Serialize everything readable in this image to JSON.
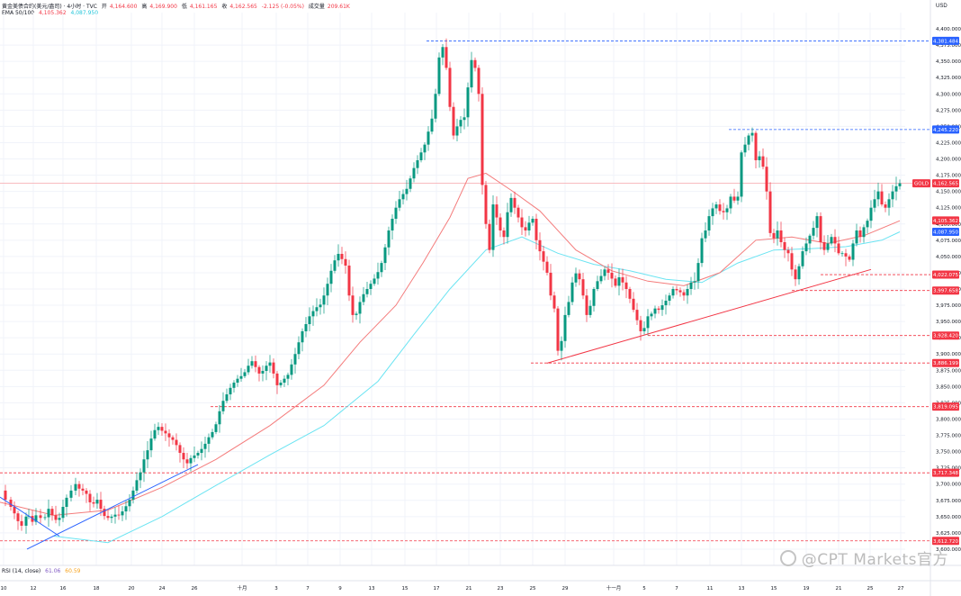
{
  "header": {
    "symbol_title": "黄金美债合约(美元/盎司) · 4小时 · TVC",
    "open_label": "开",
    "open": "4,164.600",
    "high_label": "高",
    "high": "4,169.900",
    "low_label": "低",
    "low": "4,161.165",
    "close_label": "收",
    "close": "4,162.565",
    "change": "-2.125 (-0.05%)",
    "volume_label": "成交量",
    "volume": "209.61K",
    "ema_label": "EMA 50/100",
    "ema50": "4,105.362",
    "ema100": "4,087.950"
  },
  "rsi": {
    "label": "RSI (14, close)",
    "v1": "61.06",
    "v2": "60.59"
  },
  "currency": "USD",
  "watermark": "@CPT Markets官方",
  "colors": {
    "up": "#089981",
    "down": "#f23645",
    "ema50": "#f47c7c",
    "ema100": "#6be4f2",
    "trendline_blue": "#2962ff",
    "trendline_red": "#f23645",
    "level_red": "#f23645",
    "level_blue": "#2962ff"
  },
  "chart_data": {
    "type": "candlestick",
    "title": "黄金美债合约(美元/盎司) · 4小时 · TVC",
    "ylim": [
      3575,
      4425
    ],
    "y_ticks": [
      "3,600.000",
      "3,625.000",
      "3,650.000",
      "3,675.000",
      "3,700.000",
      "3,725.000",
      "3,750.000",
      "3,775.000",
      "3,800.000",
      "3,825.000",
      "3,850.000",
      "3,875.000",
      "3,900.000",
      "3,925.000",
      "3,950.000",
      "3,975.000",
      "4,000.000",
      "4,025.000",
      "4,050.000",
      "4,075.000",
      "4,100.000",
      "4,125.000",
      "4,150.000",
      "4,175.000",
      "4,200.000",
      "4,225.000",
      "4,250.000",
      "4,275.000",
      "4,300.000",
      "4,325.000",
      "4,350.000",
      "4,375.000",
      "4,400.000"
    ],
    "x_labels": [
      "10",
      "12",
      "16",
      "18",
      "20",
      "24",
      "26",
      "十月",
      "3",
      "7",
      "9",
      "13",
      "15",
      "17",
      "21",
      "23",
      "25",
      "29",
      "十一月",
      "5",
      "7",
      "11",
      "13",
      "15",
      "19",
      "21",
      "25",
      "27"
    ],
    "close_path": [
      [
        0,
        3690
      ],
      [
        6,
        3676
      ],
      [
        12,
        3665
      ],
      [
        16,
        3655
      ],
      [
        20,
        3643
      ],
      [
        24,
        3636
      ],
      [
        29,
        3650
      ],
      [
        32,
        3651
      ],
      [
        36,
        3642
      ],
      [
        40,
        3652
      ],
      [
        45,
        3648
      ],
      [
        50,
        3649
      ],
      [
        54,
        3662
      ],
      [
        58,
        3652
      ],
      [
        62,
        3645
      ],
      [
        66,
        3648
      ],
      [
        70,
        3665
      ],
      [
        74,
        3679
      ],
      [
        79,
        3690
      ],
      [
        84,
        3700
      ],
      [
        88,
        3693
      ],
      [
        92,
        3690
      ],
      [
        96,
        3685
      ],
      [
        100,
        3672
      ],
      [
        104,
        3670
      ],
      [
        108,
        3676
      ],
      [
        112,
        3662
      ],
      [
        116,
        3651
      ],
      [
        120,
        3648
      ],
      [
        124,
        3650
      ],
      [
        128,
        3653
      ],
      [
        132,
        3652
      ],
      [
        136,
        3658
      ],
      [
        140,
        3666
      ],
      [
        144,
        3676
      ],
      [
        148,
        3690
      ],
      [
        152,
        3706
      ],
      [
        156,
        3718
      ],
      [
        160,
        3738
      ],
      [
        164,
        3752
      ],
      [
        168,
        3770
      ],
      [
        172,
        3783
      ],
      [
        176,
        3788
      ],
      [
        180,
        3782
      ],
      [
        184,
        3778
      ],
      [
        188,
        3772
      ],
      [
        192,
        3768
      ],
      [
        196,
        3760
      ],
      [
        200,
        3748
      ],
      [
        204,
        3738
      ],
      [
        208,
        3732
      ],
      [
        212,
        3740
      ],
      [
        216,
        3744
      ],
      [
        220,
        3748
      ],
      [
        224,
        3754
      ],
      [
        228,
        3762
      ],
      [
        232,
        3772
      ],
      [
        236,
        3780
      ],
      [
        240,
        3792
      ],
      [
        244,
        3812
      ],
      [
        248,
        3828
      ],
      [
        252,
        3838
      ],
      [
        256,
        3848
      ],
      [
        260,
        3856
      ],
      [
        264,
        3862
      ],
      [
        268,
        3866
      ],
      [
        272,
        3872
      ],
      [
        276,
        3882
      ],
      [
        280,
        3889
      ],
      [
        284,
        3880
      ],
      [
        288,
        3870
      ],
      [
        292,
        3874
      ],
      [
        296,
        3882
      ],
      [
        300,
        3887
      ],
      [
        304,
        3870
      ],
      [
        308,
        3852
      ],
      [
        312,
        3856
      ],
      [
        316,
        3862
      ],
      [
        320,
        3868
      ],
      [
        324,
        3884
      ],
      [
        328,
        3900
      ],
      [
        332,
        3918
      ],
      [
        336,
        3935
      ],
      [
        340,
        3946
      ],
      [
        344,
        3958
      ],
      [
        348,
        3966
      ],
      [
        352,
        3972
      ],
      [
        356,
        3976
      ],
      [
        360,
        3990
      ],
      [
        364,
        4008
      ],
      [
        368,
        4028
      ],
      [
        372,
        4044
      ],
      [
        376,
        4054
      ],
      [
        380,
        4046
      ],
      [
        384,
        4036
      ],
      [
        388,
        3990
      ],
      [
        392,
        3960
      ],
      [
        396,
        3962
      ],
      [
        400,
        3980
      ],
      [
        404,
        3992
      ],
      [
        408,
        4000
      ],
      [
        412,
        4008
      ],
      [
        416,
        4016
      ],
      [
        420,
        4026
      ],
      [
        424,
        4040
      ],
      [
        428,
        4064
      ],
      [
        432,
        4090
      ],
      [
        436,
        4108
      ],
      [
        440,
        4125
      ],
      [
        444,
        4138
      ],
      [
        448,
        4146
      ],
      [
        452,
        4154
      ],
      [
        456,
        4170
      ],
      [
        460,
        4186
      ],
      [
        464,
        4198
      ],
      [
        468,
        4210
      ],
      [
        472,
        4222
      ],
      [
        476,
        4242
      ],
      [
        480,
        4262
      ],
      [
        484,
        4300
      ],
      [
        488,
        4356
      ],
      [
        492,
        4372
      ],
      [
        496,
        4340
      ],
      [
        500,
        4280
      ],
      [
        504,
        4236
      ],
      [
        508,
        4250
      ],
      [
        512,
        4260
      ],
      [
        516,
        4264
      ],
      [
        520,
        4310
      ],
      [
        524,
        4352
      ],
      [
        528,
        4340
      ],
      [
        532,
        4300
      ],
      [
        536,
        4160
      ],
      [
        540,
        4100
      ],
      [
        544,
        4060
      ],
      [
        548,
        4130
      ],
      [
        552,
        4110
      ],
      [
        556,
        4090
      ],
      [
        560,
        4080
      ],
      [
        564,
        4118
      ],
      [
        568,
        4140
      ],
      [
        572,
        4125
      ],
      [
        576,
        4110
      ],
      [
        580,
        4095
      ],
      [
        584,
        4090
      ],
      [
        588,
        4102
      ],
      [
        592,
        4108
      ],
      [
        596,
        4075
      ],
      [
        600,
        4058
      ],
      [
        604,
        4042
      ],
      [
        608,
        4025
      ],
      [
        612,
        3990
      ],
      [
        616,
        3970
      ],
      [
        620,
        3905
      ],
      [
        624,
        3920
      ],
      [
        628,
        3960
      ],
      [
        632,
        3980
      ],
      [
        636,
        4010
      ],
      [
        640,
        4024
      ],
      [
        644,
        4015
      ],
      [
        648,
        3990
      ],
      [
        652,
        3960
      ],
      [
        656,
        3974
      ],
      [
        660,
        4000
      ],
      [
        664,
        4012
      ],
      [
        668,
        4020
      ],
      [
        672,
        4030
      ],
      [
        676,
        4025
      ],
      [
        680,
        4016
      ],
      [
        684,
        4005
      ],
      [
        688,
        4018
      ],
      [
        692,
        4010
      ],
      [
        696,
        4000
      ],
      [
        700,
        3985
      ],
      [
        704,
        3968
      ],
      [
        708,
        3952
      ],
      [
        712,
        3935
      ],
      [
        716,
        3940
      ],
      [
        720,
        3958
      ],
      [
        724,
        3962
      ],
      [
        728,
        3970
      ],
      [
        732,
        3968
      ],
      [
        736,
        3975
      ],
      [
        740,
        3982
      ],
      [
        744,
        3990
      ],
      [
        748,
        4000
      ],
      [
        752,
        3998
      ],
      [
        756,
        3995
      ],
      [
        760,
        3990
      ],
      [
        764,
        4000
      ],
      [
        768,
        4010
      ],
      [
        772,
        4012
      ],
      [
        776,
        4040
      ],
      [
        780,
        4078
      ],
      [
        784,
        4090
      ],
      [
        788,
        4112
      ],
      [
        792,
        4124
      ],
      [
        796,
        4130
      ],
      [
        800,
        4120
      ],
      [
        804,
        4118
      ],
      [
        808,
        4124
      ],
      [
        812,
        4142
      ],
      [
        816,
        4136
      ],
      [
        820,
        4142
      ],
      [
        824,
        4210
      ],
      [
        828,
        4222
      ],
      [
        832,
        4236
      ],
      [
        836,
        4240
      ],
      [
        840,
        4198
      ],
      [
        844,
        4204
      ],
      [
        848,
        4188
      ],
      [
        852,
        4150
      ],
      [
        856,
        4086
      ],
      [
        860,
        4078
      ],
      [
        864,
        4090
      ],
      [
        868,
        4072
      ],
      [
        872,
        4060
      ],
      [
        876,
        4055
      ],
      [
        880,
        4030
      ],
      [
        884,
        4015
      ],
      [
        888,
        4035
      ],
      [
        892,
        4058
      ],
      [
        896,
        4070
      ],
      [
        900,
        4082
      ],
      [
        904,
        4094
      ],
      [
        908,
        4112
      ],
      [
        912,
        4072
      ],
      [
        916,
        4060
      ],
      [
        920,
        4070
      ],
      [
        924,
        4080
      ],
      [
        928,
        4070
      ],
      [
        932,
        4055
      ],
      [
        936,
        4055
      ],
      [
        940,
        4050
      ],
      [
        944,
        4045
      ],
      [
        948,
        4070
      ],
      [
        952,
        4090
      ],
      [
        956,
        4080
      ],
      [
        960,
        4095
      ],
      [
        964,
        4105
      ],
      [
        968,
        4125
      ],
      [
        972,
        4138
      ],
      [
        976,
        4150
      ],
      [
        980,
        4130
      ],
      [
        984,
        4125
      ],
      [
        988,
        4138
      ],
      [
        992,
        4150
      ],
      [
        996,
        4158
      ],
      [
        1000,
        4162.565
      ]
    ],
    "ema50": [
      [
        0,
        3672
      ],
      [
        60,
        3652
      ],
      [
        120,
        3660
      ],
      [
        180,
        3695
      ],
      [
        240,
        3738
      ],
      [
        300,
        3790
      ],
      [
        360,
        3852
      ],
      [
        400,
        3918
      ],
      [
        440,
        3975
      ],
      [
        470,
        4040
      ],
      [
        500,
        4110
      ],
      [
        520,
        4170
      ],
      [
        540,
        4178
      ],
      [
        570,
        4150
      ],
      [
        600,
        4120
      ],
      [
        640,
        4060
      ],
      [
        680,
        4028
      ],
      [
        720,
        4012
      ],
      [
        760,
        4005
      ],
      [
        800,
        4025
      ],
      [
        840,
        4075
      ],
      [
        880,
        4080
      ],
      [
        920,
        4070
      ],
      [
        960,
        4082
      ],
      [
        1000,
        4105
      ]
    ],
    "ema100": [
      [
        60,
        3620
      ],
      [
        120,
        3610
      ],
      [
        180,
        3650
      ],
      [
        240,
        3698
      ],
      [
        300,
        3745
      ],
      [
        360,
        3790
      ],
      [
        420,
        3858
      ],
      [
        460,
        3930
      ],
      [
        500,
        4000
      ],
      [
        540,
        4060
      ],
      [
        580,
        4080
      ],
      [
        620,
        4055
      ],
      [
        660,
        4038
      ],
      [
        700,
        4028
      ],
      [
        740,
        4015
      ],
      [
        780,
        4010
      ],
      [
        820,
        4040
      ],
      [
        860,
        4060
      ],
      [
        900,
        4062
      ],
      [
        940,
        4065
      ],
      [
        980,
        4075
      ],
      [
        1000,
        4087.95
      ]
    ],
    "levels": [
      {
        "label": "4,381.484",
        "value": 4381.484,
        "color": "#2962ff",
        "from": 474
      },
      {
        "label": "4,245.220",
        "value": 4245.22,
        "color": "#2962ff",
        "from": 810
      },
      {
        "label": "4,022.075",
        "value": 4022.075,
        "color": "#f23645",
        "from": 912
      },
      {
        "label": "3,997.658",
        "value": 3997.658,
        "color": "#f23645",
        "from": 880
      },
      {
        "label": "3,928.420",
        "value": 3928.42,
        "color": "#f23645",
        "from": 720
      },
      {
        "label": "3,886.199",
        "value": 3886.199,
        "color": "#f23645",
        "from": 590
      },
      {
        "label": "3,819.095",
        "value": 3819.095,
        "color": "#f23645",
        "from": 234
      },
      {
        "label": "3,717.348",
        "value": 3717.348,
        "color": "#f23645",
        "from": 0
      },
      {
        "label": "3,612.720",
        "value": 3612.72,
        "color": "#f23645",
        "from": 0
      }
    ],
    "price_tags": [
      {
        "label": "GOLD",
        "value": 4162.565,
        "color": "#f23645"
      },
      {
        "label": "4,105.362",
        "value": 4105.362,
        "color": "#f23645"
      },
      {
        "label": "4,087.950",
        "value": 4087.95,
        "color": "#2962ff"
      }
    ],
    "trendlines": [
      {
        "color": "#2962ff",
        "points": [
          [
            0,
            3680
          ],
          [
            66,
            3620
          ]
        ]
      },
      {
        "color": "#2962ff",
        "points": [
          [
            30,
            3600
          ],
          [
            220,
            3730
          ]
        ]
      },
      {
        "color": "#f23645",
        "points": [
          [
            608,
            3886
          ],
          [
            968,
            4030
          ]
        ]
      }
    ]
  }
}
